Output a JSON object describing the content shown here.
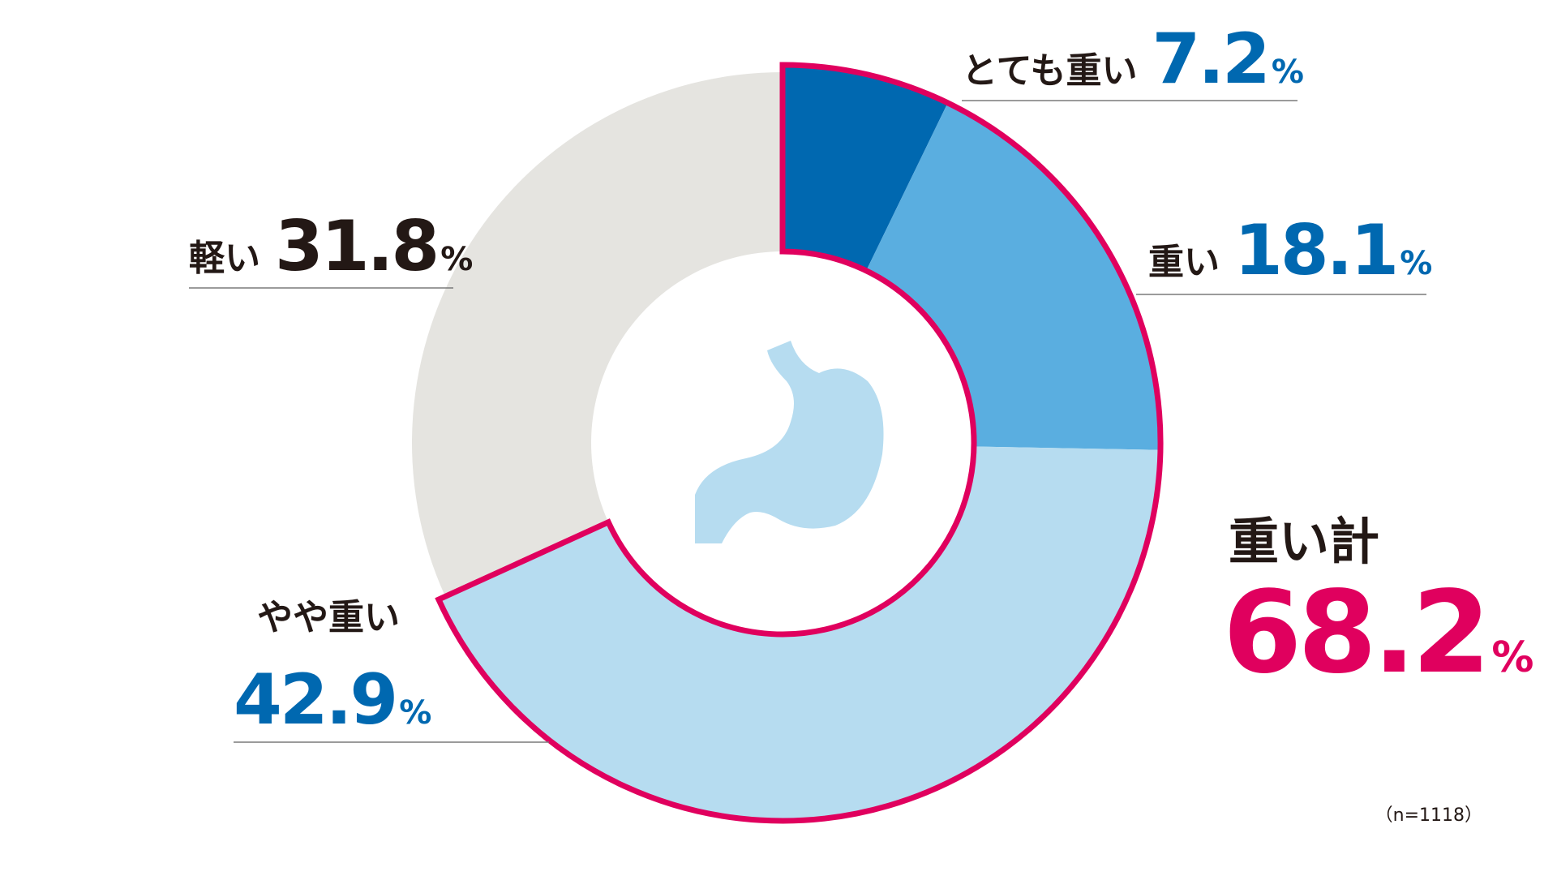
{
  "chart_data": {
    "type": "donut",
    "categories": [
      "とても重い",
      "重い",
      "やや重い",
      "軽い"
    ],
    "values": [
      7.2,
      18.1,
      42.9,
      31.8
    ],
    "colors": [
      "#0068b0",
      "#5aaee0",
      "#b6dcf0",
      "#e5e4e0"
    ],
    "unit": "%",
    "highlight_color": "#e0005e",
    "total": {
      "label": "重い計",
      "value": 68.2
    },
    "note": "（n=1118）"
  }
}
